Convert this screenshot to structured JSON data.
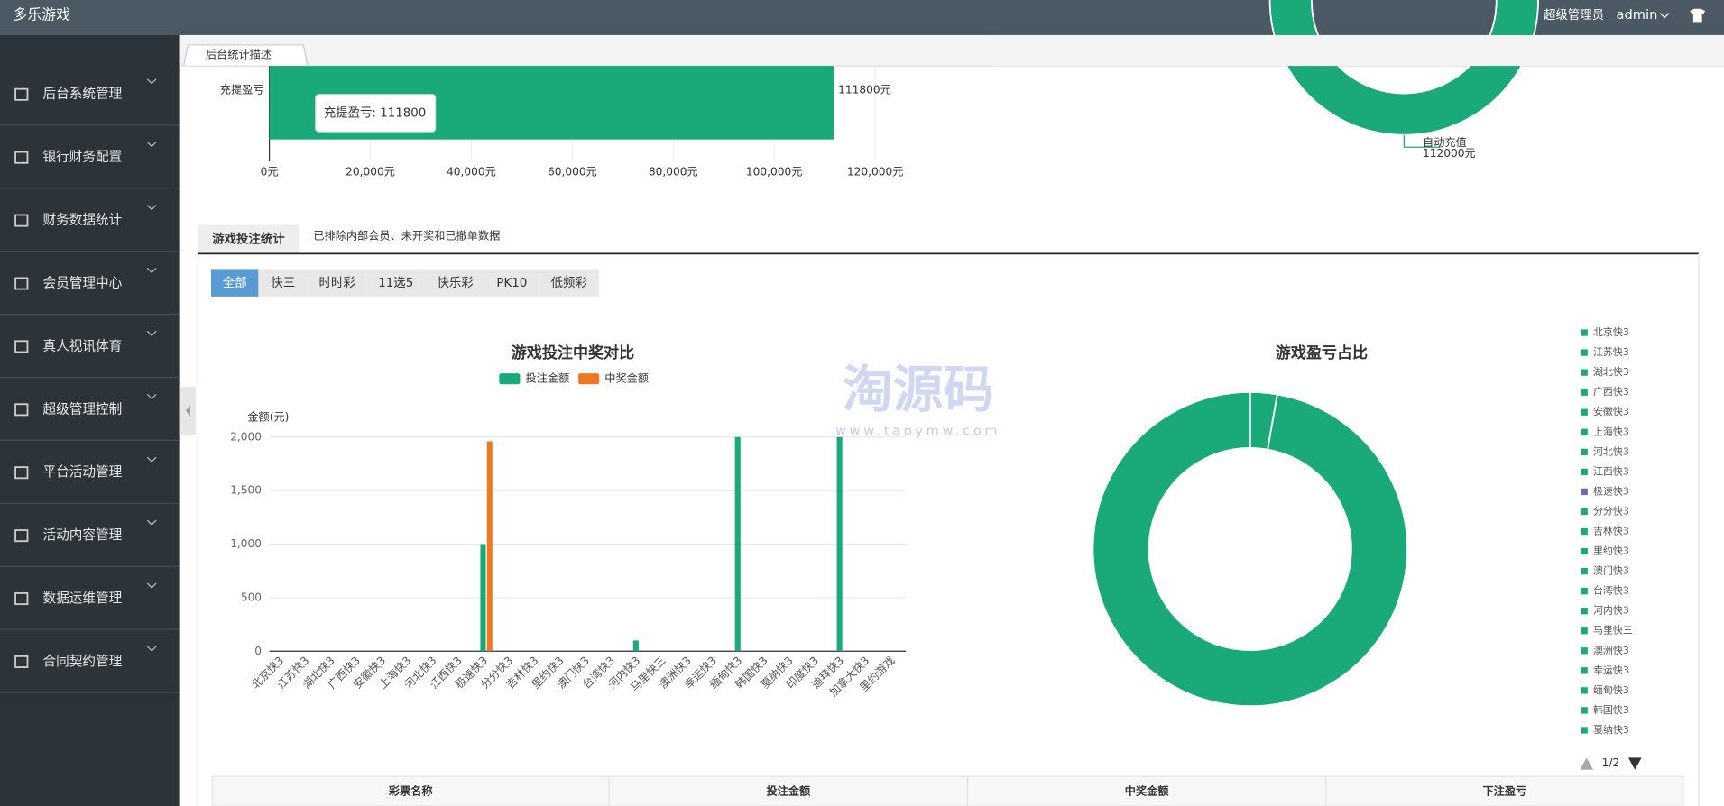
{
  "header": {
    "title": "多乐游戏",
    "role": "超级管理员",
    "user": "admin"
  },
  "sidebar": [
    "后台系统管理",
    "银行财务配置",
    "财务数据统计",
    "会员管理中心",
    "真人视讯体育",
    "超级管理控制",
    "平台活动管理",
    "活动内容管理",
    "数据运维管理",
    "合同契约管理"
  ],
  "tab": "后台统计描述",
  "top_chart": {
    "type": "bar",
    "orientation": "horizontal",
    "categories": [
      "充提盈亏"
    ],
    "values": [
      111800
    ],
    "value_labels": [
      "111800元"
    ],
    "color": "#1aaa7a",
    "xlim": [
      0,
      120000
    ],
    "xticks": [
      {
        "value": 0,
        "label": "0元"
      },
      {
        "value": 20000,
        "label": "20,000元"
      },
      {
        "value": 40000,
        "label": "40,000元"
      },
      {
        "value": 60000,
        "label": "60,000元"
      },
      {
        "value": 80000,
        "label": "80,000元"
      },
      {
        "value": 100000,
        "label": "100,000元"
      },
      {
        "value": 120000,
        "label": "120,000元"
      }
    ],
    "grid": true,
    "tooltip": "充提盈亏: 111800"
  },
  "top_pie": {
    "type": "pie",
    "categories": [
      "自动充值"
    ],
    "values": [
      112000
    ],
    "value_labels": [
      "112000元"
    ],
    "color": "#1aaa7a"
  },
  "section": {
    "title": "游戏投注统计",
    "note": "已排除内部会员、未开奖和已撤单数据"
  },
  "filters": [
    "全部",
    "快三",
    "时时彩",
    "11选5",
    "快乐彩",
    "PK10",
    "低频彩"
  ],
  "bet_chart": {
    "type": "bar",
    "title": "游戏投注中奖对比",
    "ylabel": "金额(元)",
    "categories": [
      "北京快3",
      "江苏快3",
      "湖北快3",
      "广西快3",
      "安徽快3",
      "上海快3",
      "河北快3",
      "江西快3",
      "极速快3",
      "分分快3",
      "吉林快3",
      "里约快3",
      "澳门快3",
      "台湾快3",
      "河内快3",
      "马里快三",
      "澳洲快3",
      "幸运快3",
      "缅甸快3",
      "韩国快3",
      "戛纳快3",
      "印度快3",
      "迪拜快3",
      "加拿大快3",
      "里约游戏"
    ],
    "series": [
      {
        "name": "投注金额",
        "color": "#1aaa7a",
        "values": [
          0,
          0,
          0,
          0,
          0,
          0,
          0,
          0,
          1000,
          0,
          0,
          0,
          0,
          0,
          100,
          0,
          0,
          0,
          2000,
          0,
          0,
          0,
          2000,
          0,
          0
        ]
      },
      {
        "name": "中奖金额",
        "color": "#ec7a24",
        "values": [
          0,
          0,
          0,
          0,
          0,
          0,
          0,
          0,
          1960,
          0,
          0,
          0,
          0,
          0,
          0,
          0,
          0,
          0,
          0,
          0,
          0,
          0,
          0,
          0,
          0
        ]
      }
    ],
    "ylim": [
      0,
      2000
    ],
    "yticks": [
      0,
      500,
      {
        "value": 1000,
        "label": "1,000"
      },
      {
        "value": 1500,
        "label": "1,500"
      },
      {
        "value": 2000,
        "label": "2,000"
      }
    ],
    "grid": true
  },
  "profit_chart": {
    "type": "pie",
    "title": "游戏盈亏占比",
    "categories": [
      "北京快3",
      "江苏快3",
      "湖北快3",
      "广西快3",
      "安徽快3",
      "上海快3",
      "河北快3",
      "江西快3",
      "极速快3",
      "分分快3",
      "吉林快3",
      "里约快3",
      "澳门快3",
      "台湾快3",
      "河内快3",
      "马里快三",
      "澳洲快3",
      "幸运快3",
      "缅甸快3",
      "韩国快3",
      "戛纳快3"
    ],
    "values": [
      0,
      0,
      0,
      0,
      0,
      0,
      0,
      0,
      0,
      0,
      0,
      0,
      0,
      0,
      1.4,
      0,
      0,
      0,
      49.2,
      0,
      0
    ],
    "colors": [
      "#1aaa7a",
      "#1aaa7a",
      "#1aaa7a",
      "#1aaa7a",
      "#1aaa7a",
      "#1aaa7a",
      "#1aaa7a",
      "#1aaa7a",
      "#6b6bb0",
      "#1aaa7a",
      "#1aaa7a",
      "#1aaa7a",
      "#1aaa7a",
      "#1aaa7a",
      "#1aaa7a",
      "#1aaa7a",
      "#1aaa7a",
      "#1aaa7a",
      "#1aaa7a",
      "#1aaa7a",
      "#1aaa7a"
    ],
    "legend_page": "1/2"
  },
  "table": {
    "headers": [
      "彩票名称",
      "投注金额",
      "中奖金额",
      "下注盈亏"
    ]
  },
  "watermark": {
    "text": "淘源码",
    "url": "www.taoymw.com"
  }
}
